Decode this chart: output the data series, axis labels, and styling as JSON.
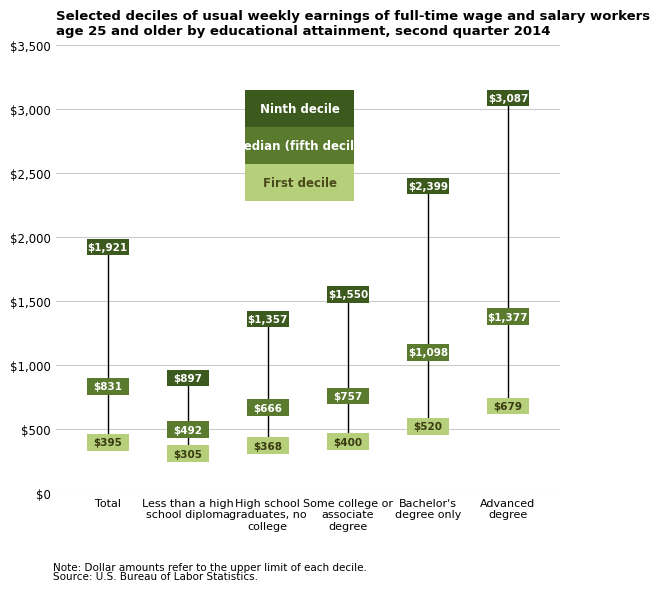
{
  "title": "Selected deciles of usual weekly earnings of full-time wage and salary workers\nage 25 and older by educational attainment, second quarter 2014",
  "categories": [
    "Total",
    "Less than a high\nschool diploma",
    "High school\ngraduates, no\ncollege",
    "Some college or\nassociate\ndegree",
    "Bachelor's\ndegree only",
    "Advanced\ndegree"
  ],
  "ninth_decile": [
    1921,
    897,
    1357,
    1550,
    2399,
    3087
  ],
  "median": [
    831,
    492,
    666,
    757,
    1098,
    1377
  ],
  "first_decile": [
    395,
    305,
    368,
    400,
    520,
    679
  ],
  "color_ninth": "#3d5a1e",
  "color_median": "#5a7a2e",
  "color_first": "#b5cf7b",
  "ylim": [
    0,
    3500
  ],
  "yticks": [
    0,
    500,
    1000,
    1500,
    2000,
    2500,
    3000,
    3500
  ],
  "legend_labels_top_to_bot": [
    "Ninth decile",
    "Median (fifth decile)",
    "First decile"
  ],
  "legend_colors_top_to_bot": [
    "#3d5a1e",
    "#5a7a2e",
    "#b5cf7b"
  ],
  "legend_text_colors": [
    "#ffffff",
    "#ffffff",
    "#4a4a1a"
  ],
  "background_color": "#ffffff",
  "grid_color": "#cccccc",
  "note_line1": "Note: Dollar amounts refer to the upper limit of each decile.",
  "note_line2": "Source: U.S. Bureau of Labor Statistics."
}
